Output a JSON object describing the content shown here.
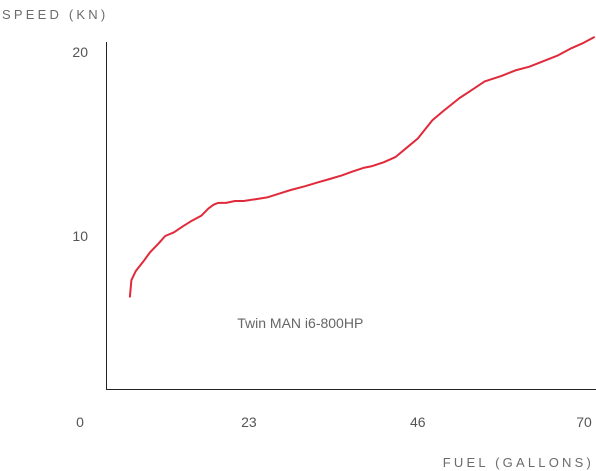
{
  "chart_data": {
    "type": "line",
    "title": "",
    "ylabel": "SPEED (KN)",
    "xlabel": "FUEL (GALLONS)",
    "xlim": [
      0,
      70
    ],
    "ylim": [
      1.6,
      20.5
    ],
    "x_ticks": [
      {
        "value": 0,
        "label": "0"
      },
      {
        "value": 23,
        "label": "23"
      },
      {
        "value": 46,
        "label": "46"
      },
      {
        "value": 70,
        "label": "70"
      }
    ],
    "y_ticks": [
      {
        "value": 10,
        "label": "10"
      },
      {
        "value": 20,
        "label": "20"
      }
    ],
    "grid": false,
    "series": [
      {
        "name": "Twin MAN i6-800HP",
        "color": "#e02a3a",
        "x": [
          6.8,
          7.0,
          7.6,
          8.6,
          9.5,
          10.7,
          11.6,
          12.8,
          13.9,
          15.1,
          16.5,
          17.5,
          18.2,
          18.8,
          19.9,
          21.1,
          22.3,
          23.9,
          25.5,
          27.1,
          28.7,
          30.6,
          32.3,
          34.0,
          35.7,
          37.1,
          38.6,
          39.8,
          41.3,
          43.0,
          44.8,
          46.0,
          48.0,
          49.5,
          51.7,
          53.6,
          55.1,
          57.4,
          59.3,
          61.2,
          63.1,
          65.0,
          66.9,
          68.6,
          70.0
        ],
        "y": [
          6.7,
          7.6,
          8.1,
          8.6,
          9.1,
          9.6,
          10.0,
          10.2,
          10.5,
          10.8,
          11.1,
          11.5,
          11.7,
          11.8,
          11.8,
          11.9,
          11.9,
          12.0,
          12.1,
          12.3,
          12.5,
          12.7,
          12.9,
          13.1,
          13.3,
          13.5,
          13.7,
          13.8,
          14.0,
          14.3,
          14.9,
          15.3,
          16.3,
          16.8,
          17.5,
          18.0,
          18.4,
          18.7,
          19.0,
          19.2,
          19.5,
          19.8,
          20.2,
          20.5,
          20.8
        ]
      }
    ],
    "annotations": [
      {
        "text": "Twin MAN i6-800HP",
        "x": 30,
        "y": 5.0
      }
    ]
  }
}
